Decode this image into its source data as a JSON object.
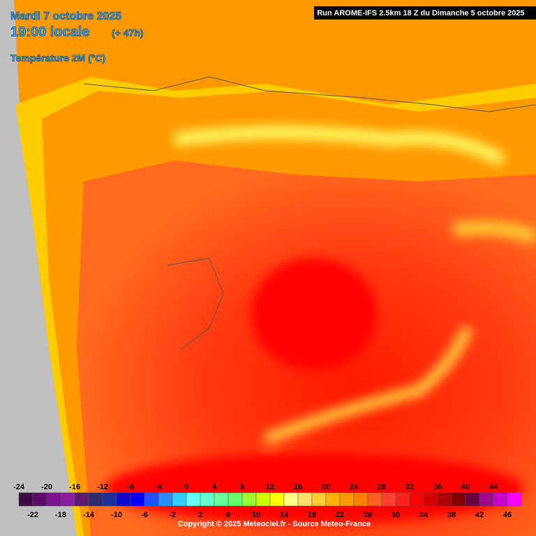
{
  "header": {
    "date": "Mardi 7 octobre 2025",
    "time": "19:00 locale",
    "offset": "(+ 47h)",
    "parameter": "Température 2M (°C)",
    "run": "Run AROME-IFS 2.5km 18 Z du Dimanche 5 octobre 2025"
  },
  "legend": {
    "top_labels": [
      -24,
      -20,
      -16,
      -12,
      -8,
      -4,
      0,
      4,
      8,
      12,
      16,
      20,
      24,
      28,
      32,
      36,
      40,
      44
    ],
    "bottom_labels": [
      -22,
      -18,
      -14,
      -10,
      -6,
      -2,
      2,
      6,
      10,
      14,
      18,
      22,
      26,
      30,
      34,
      38,
      42,
      46
    ],
    "colors": [
      "#3d0a45",
      "#5a0d66",
      "#7b1290",
      "#8a1fa0",
      "#5c1a6e",
      "#2b2b6e",
      "#1a2f9c",
      "#0b0bd0",
      "#0000ff",
      "#1e50ff",
      "#2a8cff",
      "#33ccff",
      "#66ffff",
      "#66ffcc",
      "#66ff99",
      "#66ff66",
      "#99ff33",
      "#ccff00",
      "#ffff00",
      "#ffff88",
      "#ffe066",
      "#ffcc33",
      "#ffb300",
      "#ff9900",
      "#ff8000",
      "#ff6020",
      "#ff4030",
      "#ff2020",
      "#ff0000",
      "#d80000",
      "#b00000",
      "#800000",
      "#6a0040",
      "#9a0a8a",
      "#cc00cc",
      "#ff00ff"
    ]
  },
  "footer": {
    "copyright": "Copyright © 2025 Meteociel.fr - Source Meteo-France"
  }
}
